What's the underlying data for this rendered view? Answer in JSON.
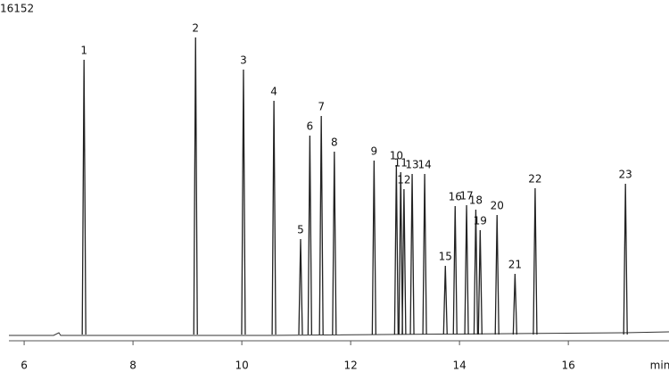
{
  "chart_data": {
    "type": "chromatogram",
    "x_label": "min",
    "labels": [
      "1",
      "2",
      "3",
      "4",
      "5",
      "6",
      "7",
      "8",
      "9",
      "10",
      "11",
      "12",
      "13",
      "14",
      "15",
      "16",
      "17",
      "18",
      "19",
      "20",
      "21",
      "22",
      "23"
    ],
    "x": [
      7.1,
      9.15,
      10.03,
      10.59,
      11.08,
      11.25,
      11.46,
      11.7,
      12.43,
      12.84,
      12.92,
      12.98,
      13.13,
      13.36,
      13.74,
      13.92,
      14.13,
      14.3,
      14.38,
      14.69,
      15.02,
      15.39,
      17.05
    ],
    "values": [
      13555,
      14656,
      13071,
      11531,
      4709,
      9814,
      10783,
      9022,
      8582,
      8362,
      8010,
      7174,
      7922,
      7922,
      3389,
      6338,
      6381,
      6161,
      5149,
      5897,
      2993,
      7218,
      7438
    ],
    "color": "#222222",
    "xlim": [
      5.72,
      17.85
    ],
    "xticks": [
      6,
      8,
      10,
      12,
      14,
      16
    ],
    "ylim": [
      0,
      16152
    ],
    "yticks": [
      16152
    ]
  }
}
